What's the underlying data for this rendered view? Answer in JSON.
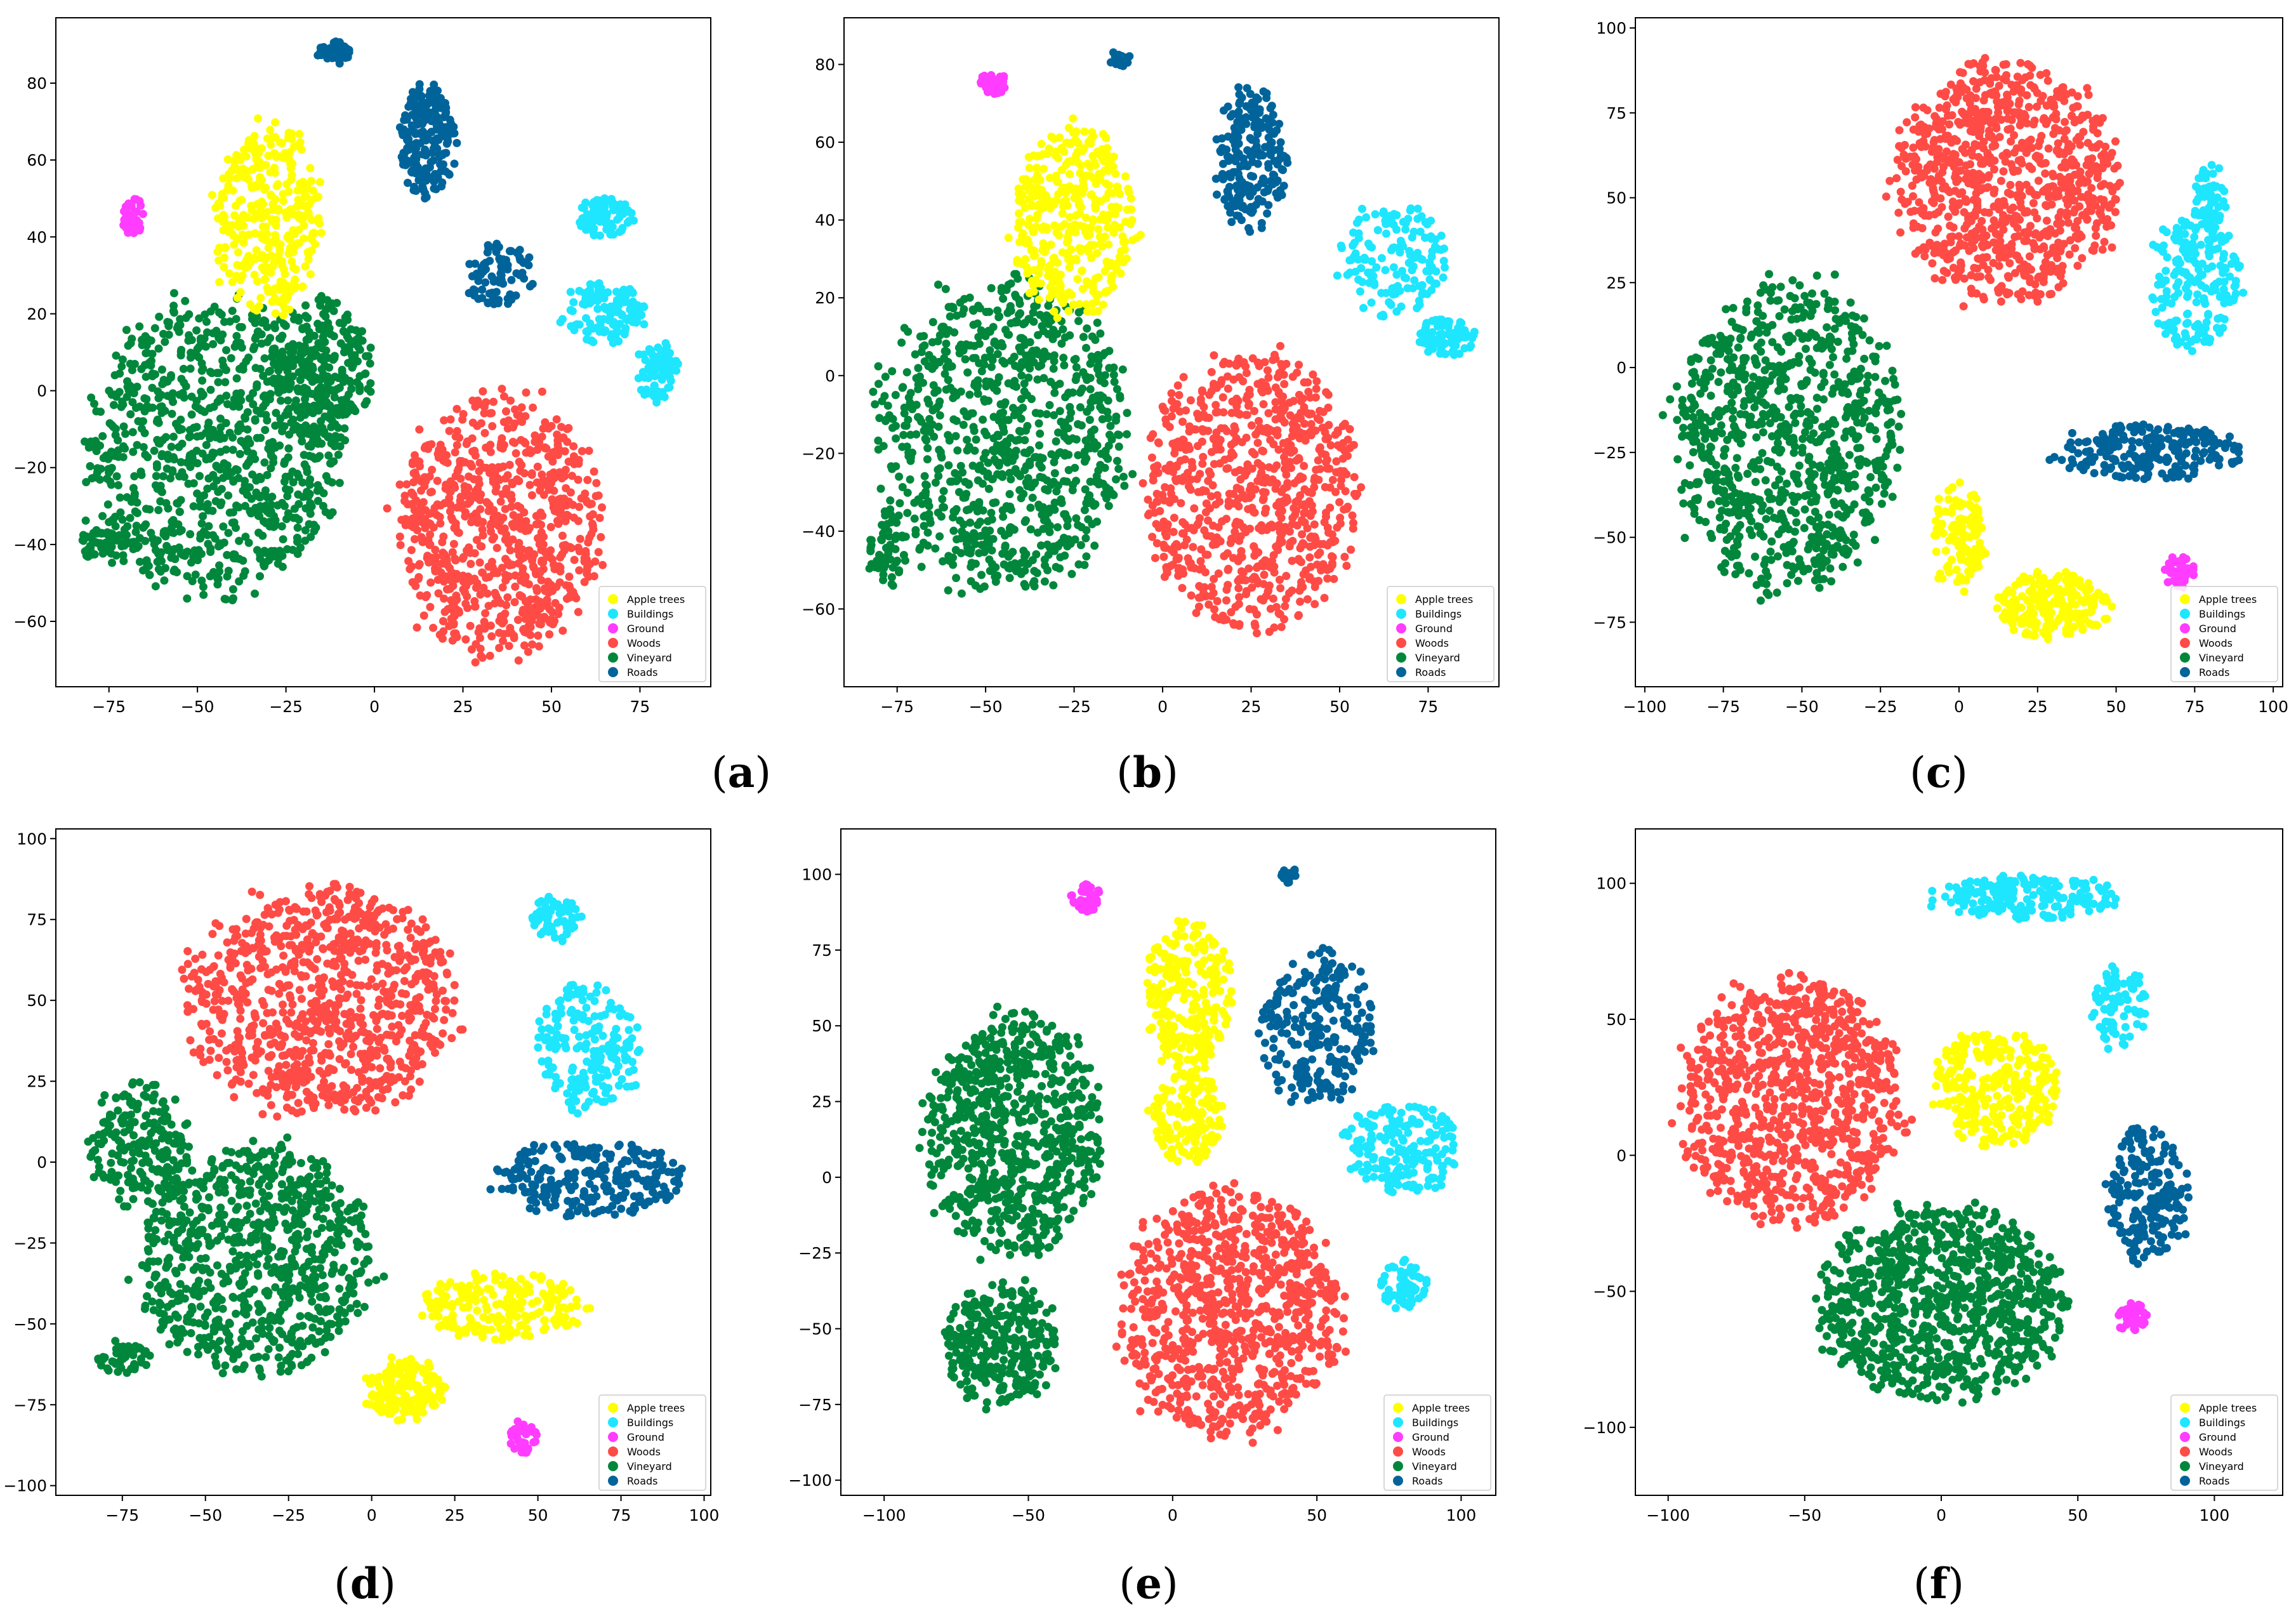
{
  "figure": {
    "classes": [
      {
        "name": "Apple trees",
        "color": "#ffff00"
      },
      {
        "name": "Buildings",
        "color": "#1ee6ff"
      },
      {
        "name": "Ground",
        "color": "#ff3cff"
      },
      {
        "name": "Woods",
        "color": "#ff4b46"
      },
      {
        "name": "Vineyard",
        "color": "#00873c"
      },
      {
        "name": "Roads",
        "color": "#00649b"
      }
    ]
  },
  "chart_data": [
    {
      "panel_label": "(a)",
      "type": "scatter",
      "title": "",
      "xlabel": "",
      "ylabel": "",
      "xlim": [
        -90,
        95
      ],
      "ylim": [
        -77,
        97
      ],
      "xticks": [
        -75,
        -50,
        -25,
        0,
        25,
        50,
        75
      ],
      "yticks": [
        -60,
        -40,
        -20,
        0,
        20,
        40,
        60,
        80
      ],
      "legend": "bottom-right",
      "clusters": [
        {
          "class": "Vineyard",
          "cx": -45,
          "cy": -15,
          "rx": 35,
          "ry": 38,
          "n": 900,
          "spec": 1
        },
        {
          "class": "Vineyard",
          "cx": -15,
          "cy": 5,
          "rx": 14,
          "ry": 20,
          "n": 250
        },
        {
          "class": "Vineyard",
          "cx": -75,
          "cy": -40,
          "rx": 8,
          "ry": 5,
          "n": 60
        },
        {
          "class": "Apple trees",
          "cx": -30,
          "cy": 45,
          "rx": 15,
          "ry": 25,
          "n": 350,
          "spec": 1
        },
        {
          "class": "Woods",
          "cx": 35,
          "cy": -35,
          "rx": 28,
          "ry": 33,
          "n": 800,
          "spec": 1
        },
        {
          "class": "Roads",
          "cx": 15,
          "cy": 65,
          "rx": 8,
          "ry": 15,
          "n": 200
        },
        {
          "class": "Roads",
          "cx": 35,
          "cy": 30,
          "rx": 10,
          "ry": 8,
          "n": 80
        },
        {
          "class": "Roads",
          "cx": -12,
          "cy": 88,
          "rx": 5,
          "ry": 3,
          "n": 40
        },
        {
          "class": "Buildings",
          "cx": 65,
          "cy": 20,
          "rx": 12,
          "ry": 8,
          "n": 120
        },
        {
          "class": "Buildings",
          "cx": 80,
          "cy": 5,
          "rx": 6,
          "ry": 8,
          "n": 80
        },
        {
          "class": "Buildings",
          "cx": 65,
          "cy": 45,
          "rx": 8,
          "ry": 5,
          "n": 80
        },
        {
          "class": "Ground",
          "cx": -68,
          "cy": 45,
          "rx": 3,
          "ry": 5,
          "n": 40
        }
      ]
    },
    {
      "panel_label": "(b)",
      "type": "scatter",
      "title": "",
      "xlabel": "",
      "ylabel": "",
      "xlim": [
        -90,
        95
      ],
      "ylim": [
        -80,
        92
      ],
      "xticks": [
        -75,
        -50,
        -25,
        0,
        25,
        50,
        75
      ],
      "yticks": [
        -60,
        -40,
        -20,
        0,
        20,
        40,
        60,
        80
      ],
      "legend": "bottom-right",
      "clusters": [
        {
          "class": "Vineyard",
          "cx": -45,
          "cy": -15,
          "rx": 35,
          "ry": 40,
          "n": 900,
          "spec": 1
        },
        {
          "class": "Vineyard",
          "cx": -78,
          "cy": -45,
          "rx": 5,
          "ry": 10,
          "n": 60
        },
        {
          "class": "Apple trees",
          "cx": -25,
          "cy": 40,
          "rx": 17,
          "ry": 25,
          "n": 380,
          "spec": 1
        },
        {
          "class": "Woods",
          "cx": 25,
          "cy": -30,
          "rx": 30,
          "ry": 35,
          "n": 800,
          "spec": 1
        },
        {
          "class": "Roads",
          "cx": 25,
          "cy": 55,
          "rx": 10,
          "ry": 18,
          "n": 220
        },
        {
          "class": "Roads",
          "cx": -12,
          "cy": 82,
          "rx": 3,
          "ry": 3,
          "n": 20
        },
        {
          "class": "Buildings",
          "cx": 65,
          "cy": 30,
          "rx": 15,
          "ry": 15,
          "n": 150
        },
        {
          "class": "Buildings",
          "cx": 80,
          "cy": 10,
          "rx": 8,
          "ry": 5,
          "n": 80
        },
        {
          "class": "Ground",
          "cx": -48,
          "cy": 75,
          "rx": 4,
          "ry": 3,
          "n": 30
        }
      ]
    },
    {
      "panel_label": "(c)",
      "type": "scatter",
      "title": "",
      "xlabel": "",
      "ylabel": "",
      "xlim": [
        -103,
        103
      ],
      "ylim": [
        -94,
        103
      ],
      "xticks": [
        -100,
        -75,
        -50,
        -25,
        0,
        25,
        50,
        75,
        100
      ],
      "yticks": [
        -75,
        -50,
        -25,
        0,
        25,
        50,
        75,
        100
      ],
      "legend": "bottom-right",
      "clusters": [
        {
          "class": "Woods",
          "cx": 15,
          "cy": 55,
          "rx": 35,
          "ry": 35,
          "n": 900,
          "spec": 1
        },
        {
          "class": "Vineyard",
          "cx": -55,
          "cy": -20,
          "rx": 35,
          "ry": 45,
          "n": 900,
          "spec": 1
        },
        {
          "class": "Apple trees",
          "cx": 0,
          "cy": -50,
          "rx": 8,
          "ry": 15,
          "n": 120
        },
        {
          "class": "Apple trees",
          "cx": 30,
          "cy": -70,
          "rx": 18,
          "ry": 10,
          "n": 220
        },
        {
          "class": "Roads",
          "cx": 60,
          "cy": -25,
          "rx": 30,
          "ry": 8,
          "n": 220
        },
        {
          "class": "Buildings",
          "cx": 75,
          "cy": 25,
          "rx": 15,
          "ry": 20,
          "n": 200
        },
        {
          "class": "Buildings",
          "cx": 80,
          "cy": 50,
          "rx": 5,
          "ry": 10,
          "n": 60
        },
        {
          "class": "Ground",
          "cx": 70,
          "cy": -60,
          "rx": 5,
          "ry": 5,
          "n": 40
        }
      ]
    },
    {
      "panel_label": "(d)",
      "type": "scatter",
      "title": "",
      "xlabel": "",
      "ylabel": "",
      "xlim": [
        -95,
        102
      ],
      "ylim": [
        -103,
        103
      ],
      "xticks": [
        -75,
        -50,
        -25,
        0,
        25,
        50,
        75,
        100
      ],
      "yticks": [
        -100,
        -75,
        -50,
        -25,
        0,
        25,
        50,
        75,
        100
      ],
      "legend": "bottom-right",
      "clusters": [
        {
          "class": "Woods",
          "cx": -15,
          "cy": 50,
          "rx": 40,
          "ry": 35,
          "n": 900,
          "spec": 1
        },
        {
          "class": "Vineyard",
          "cx": -35,
          "cy": -30,
          "rx": 35,
          "ry": 35,
          "n": 800,
          "spec": 1
        },
        {
          "class": "Vineyard",
          "cx": -70,
          "cy": 5,
          "rx": 15,
          "ry": 20,
          "n": 200
        },
        {
          "class": "Vineyard",
          "cx": -75,
          "cy": -60,
          "rx": 8,
          "ry": 5,
          "n": 50
        },
        {
          "class": "Apple trees",
          "cx": 40,
          "cy": -45,
          "rx": 25,
          "ry": 10,
          "n": 220
        },
        {
          "class": "Apple trees",
          "cx": 10,
          "cy": -70,
          "rx": 12,
          "ry": 10,
          "n": 150
        },
        {
          "class": "Roads",
          "cx": 65,
          "cy": -5,
          "rx": 28,
          "ry": 12,
          "n": 250
        },
        {
          "class": "Buildings",
          "cx": 65,
          "cy": 35,
          "rx": 15,
          "ry": 20,
          "n": 200
        },
        {
          "class": "Buildings",
          "cx": 55,
          "cy": 75,
          "rx": 8,
          "ry": 7,
          "n": 60
        },
        {
          "class": "Ground",
          "cx": 45,
          "cy": -85,
          "rx": 5,
          "ry": 5,
          "n": 40
        }
      ]
    },
    {
      "panel_label": "(e)",
      "type": "scatter",
      "title": "",
      "xlabel": "",
      "ylabel": "",
      "xlim": [
        -115,
        112
      ],
      "ylim": [
        -105,
        115
      ],
      "xticks": [
        -100,
        -50,
        0,
        50,
        100
      ],
      "yticks": [
        -100,
        -75,
        -50,
        -25,
        0,
        25,
        50,
        75,
        100
      ],
      "legend": "bottom-right",
      "clusters": [
        {
          "class": "Vineyard",
          "cx": -55,
          "cy": 15,
          "rx": 30,
          "ry": 40,
          "n": 750,
          "spec": 1
        },
        {
          "class": "Vineyard",
          "cx": -60,
          "cy": -55,
          "rx": 20,
          "ry": 20,
          "n": 300
        },
        {
          "class": "Apple trees",
          "cx": 5,
          "cy": 60,
          "rx": 15,
          "ry": 25,
          "n": 260
        },
        {
          "class": "Apple trees",
          "cx": 5,
          "cy": 20,
          "rx": 12,
          "ry": 15,
          "n": 150
        },
        {
          "class": "Woods",
          "cx": 20,
          "cy": -45,
          "rx": 38,
          "ry": 40,
          "n": 850,
          "spec": 1
        },
        {
          "class": "Roads",
          "cx": 50,
          "cy": 50,
          "rx": 20,
          "ry": 25,
          "n": 250
        },
        {
          "class": "Roads",
          "cx": 40,
          "cy": 100,
          "rx": 3,
          "ry": 3,
          "n": 20
        },
        {
          "class": "Buildings",
          "cx": 80,
          "cy": 10,
          "rx": 20,
          "ry": 15,
          "n": 200
        },
        {
          "class": "Buildings",
          "cx": 80,
          "cy": -35,
          "rx": 8,
          "ry": 8,
          "n": 60
        },
        {
          "class": "Ground",
          "cx": -30,
          "cy": 92,
          "rx": 5,
          "ry": 5,
          "n": 40
        }
      ]
    },
    {
      "panel_label": "(f)",
      "type": "scatter",
      "title": "",
      "xlabel": "",
      "ylabel": "",
      "xlim": [
        -112,
        125
      ],
      "ylim": [
        -125,
        120
      ],
      "xticks": [
        -100,
        -50,
        0,
        50,
        100
      ],
      "yticks": [
        -100,
        -50,
        0,
        50,
        100
      ],
      "legend": "bottom-right",
      "clusters": [
        {
          "class": "Woods",
          "cx": -55,
          "cy": 20,
          "rx": 40,
          "ry": 45,
          "n": 900,
          "spec": 1
        },
        {
          "class": "Vineyard",
          "cx": 0,
          "cy": -55,
          "rx": 45,
          "ry": 35,
          "n": 900,
          "spec": 1
        },
        {
          "class": "Apple trees",
          "cx": 20,
          "cy": 25,
          "rx": 22,
          "ry": 22,
          "n": 300
        },
        {
          "class": "Roads",
          "cx": 75,
          "cy": -15,
          "rx": 15,
          "ry": 25,
          "n": 200
        },
        {
          "class": "Buildings",
          "cx": 30,
          "cy": 95,
          "rx": 35,
          "ry": 8,
          "n": 200
        },
        {
          "class": "Buildings",
          "cx": 65,
          "cy": 55,
          "rx": 10,
          "ry": 15,
          "n": 80
        },
        {
          "class": "Ground",
          "cx": 70,
          "cy": -60,
          "rx": 6,
          "ry": 6,
          "n": 40
        }
      ]
    }
  ]
}
